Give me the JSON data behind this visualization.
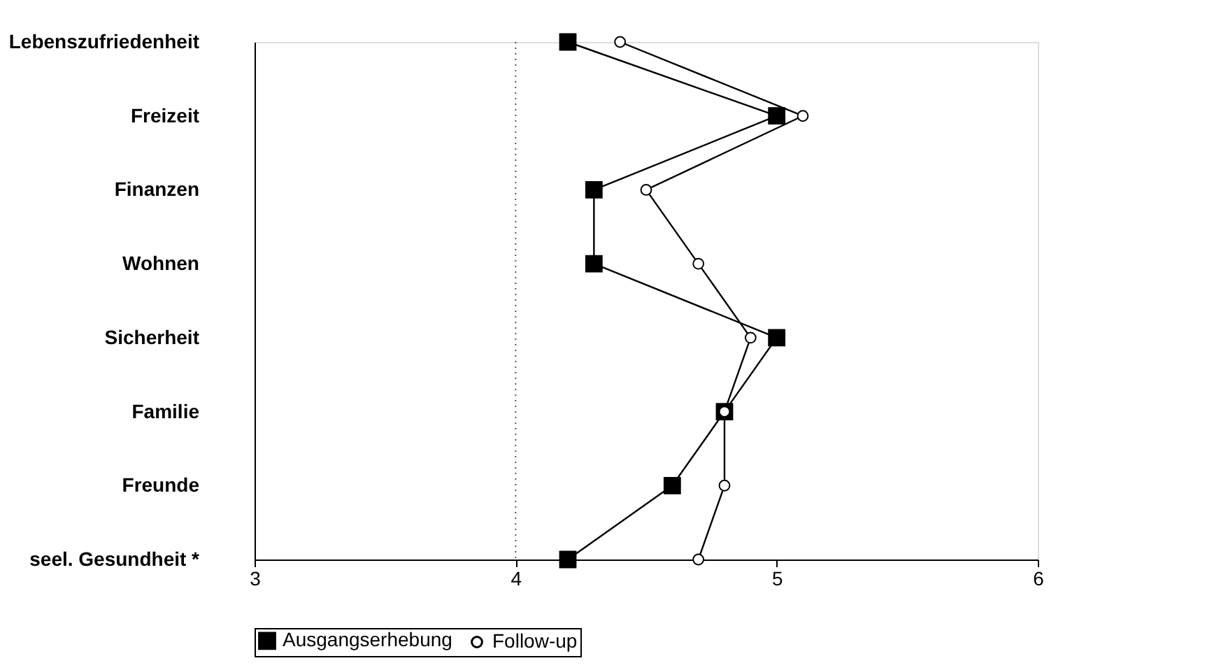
{
  "chart_data": {
    "type": "line",
    "orientation": "horizontal",
    "categories": [
      "Lebenszufriedenheit",
      "Freizeit",
      "Finanzen",
      "Wohnen",
      "Sicherheit",
      "Familie",
      "Freunde",
      "seel. Gesundheit *"
    ],
    "series": [
      {
        "name": "Ausgangserhebung",
        "color": "#000000",
        "marker": "square",
        "values": [
          4.2,
          5.0,
          4.3,
          4.3,
          5.0,
          4.8,
          4.6,
          4.2
        ]
      },
      {
        "name": "Follow-up",
        "color": "#000000",
        "marker": "circle",
        "values": [
          4.4,
          5.1,
          4.5,
          4.7,
          4.9,
          4.8,
          4.8,
          4.7
        ]
      }
    ],
    "xlim": [
      3,
      6
    ],
    "xticks": [
      3,
      4,
      5,
      6
    ],
    "ref_lines": [
      {
        "axis": "x",
        "value": 4,
        "line_style": "dotted",
        "color": "#555555"
      }
    ],
    "grid": false,
    "legend": "bottom",
    "line_style": "solid"
  }
}
